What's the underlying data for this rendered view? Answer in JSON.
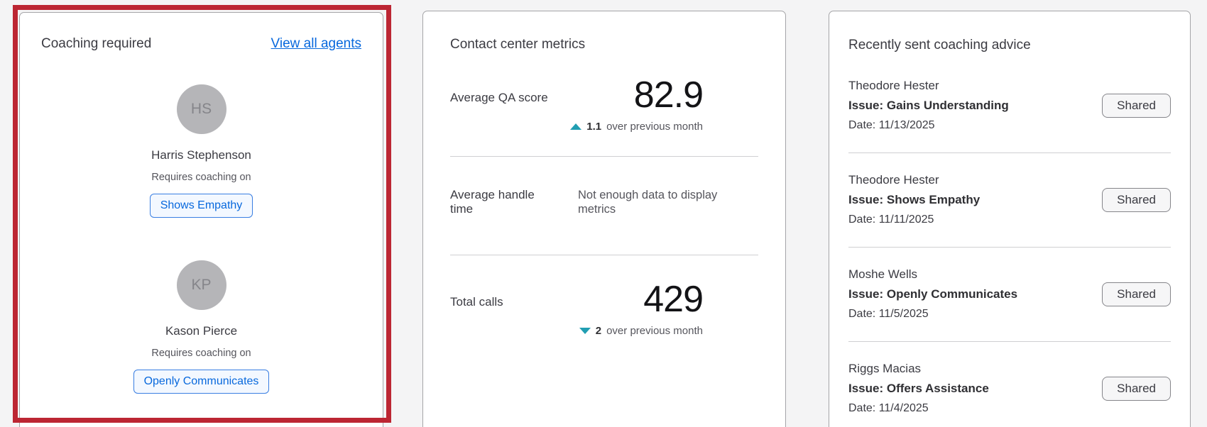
{
  "coaching_card": {
    "title": "Coaching required",
    "view_all_link": "View all agents",
    "agents": [
      {
        "initials": "HS",
        "name": "Harris Stephenson",
        "caption": "Requires coaching on",
        "topic": "Shows Empathy"
      },
      {
        "initials": "KP",
        "name": "Kason Pierce",
        "caption": "Requires coaching on",
        "topic": "Openly Communicates"
      }
    ]
  },
  "metrics_card": {
    "title": "Contact center metrics",
    "qa": {
      "label": "Average QA score",
      "value": "82.9",
      "delta": "1.1",
      "suffix": "over previous month",
      "direction": "up"
    },
    "handle_time": {
      "label": "Average handle time",
      "empty_message": "Not enough data to display metrics"
    },
    "total_calls": {
      "label": "Total calls",
      "value": "429",
      "delta": "2",
      "suffix": "over previous month",
      "direction": "down"
    }
  },
  "advice_card": {
    "title": "Recently sent coaching advice",
    "items": [
      {
        "name": "Theodore Hester",
        "issue": "Issue: Gains Understanding",
        "date": "Date: 11/13/2025",
        "status": "Shared"
      },
      {
        "name": "Theodore Hester",
        "issue": "Issue: Shows Empathy",
        "date": "Date: 11/11/2025",
        "status": "Shared"
      },
      {
        "name": "Moshe Wells",
        "issue": "Issue: Openly Communicates",
        "date": "Date: 11/5/2025",
        "status": "Shared"
      },
      {
        "name": "Riggs Macias",
        "issue": "Issue: Offers Assistance",
        "date": "Date: 11/4/2025",
        "status": "Shared"
      }
    ]
  },
  "colors": {
    "annotation_red": "#bc2633",
    "link_blue": "#0768dd",
    "trend_teal": "#219eb2",
    "page_background": "#f4f4f5"
  }
}
